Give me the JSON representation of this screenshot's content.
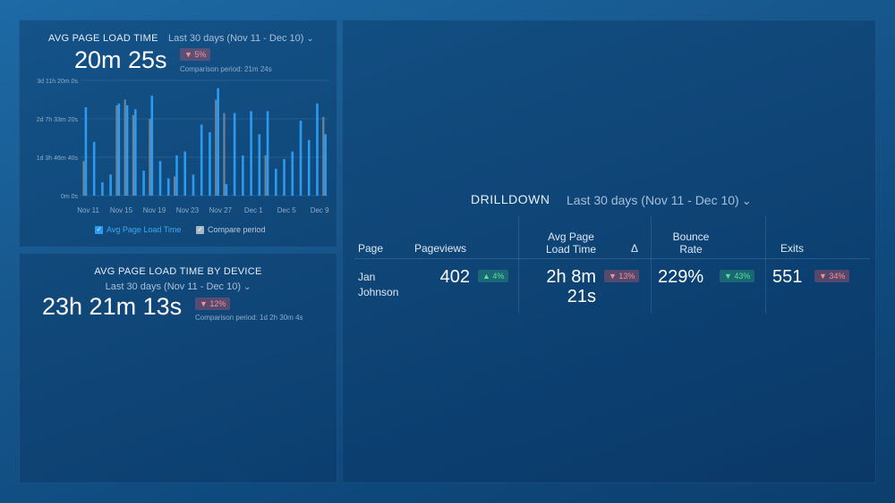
{
  "panel_load_time": {
    "title": "AVG PAGE LOAD TIME",
    "range": "Last 30 days (Nov 11 - Dec 10)",
    "value": "20m 25s",
    "badge": "▼ 5%",
    "comparison": "Comparison period: 21m 24s",
    "legend_primary": "Avg Page Load Time",
    "legend_compare": "Compare period"
  },
  "panel_device": {
    "title": "AVG PAGE LOAD TIME BY DEVICE",
    "range": "Last 30 days (Nov 11 - Dec 10)",
    "value": "23h 21m 13s",
    "badge": "▼ 12%",
    "comparison": "Comparison period: 1d 2h 30m 4s"
  },
  "drilldown": {
    "title": "DRILLDOWN",
    "range": "Last 30 days (Nov 11 - Dec 10)",
    "headers": {
      "page": "Page",
      "pageviews": "Pageviews",
      "load_time_1": "Avg Page",
      "load_time_2": "Load Time",
      "delta": "Δ",
      "bounce_1": "Bounce",
      "bounce_2": "Rate",
      "exits": "Exits"
    },
    "row": {
      "page_1": "Jan",
      "page_2": "Johnson",
      "pageviews": "402",
      "pageviews_badge": "▲ 4%",
      "load_time_1": "2h 8m",
      "load_time_2": "21s",
      "load_time_badge": "▼ 13%",
      "bounce": "229%",
      "bounce_badge": "▼ 43%",
      "exits": "551",
      "exits_badge": "▼ 34%"
    }
  },
  "colors": {
    "primary_series": "#2a9bf0",
    "compare_series": "#6f8597",
    "badge_down": "#ff8d8f",
    "badge_up": "#56e29a"
  },
  "chart_data": {
    "type": "bar",
    "title": "AVG PAGE LOAD TIME",
    "y_ticks": [
      "0m 0s",
      "1d 3h 46m 40s",
      "2d 7h 33m 20s",
      "3d 11h 20m 0s"
    ],
    "y_tick_values_seconds": [
      0,
      100000,
      200000,
      300000
    ],
    "ylim_seconds": [
      0,
      300000
    ],
    "x_tick_labels": [
      "Nov 11",
      "Nov 15",
      "Nov 19",
      "Nov 23",
      "Nov 27",
      "Dec 1",
      "Dec 5",
      "Dec 9"
    ],
    "x_tick_day_index": [
      0,
      4,
      8,
      12,
      16,
      20,
      24,
      28
    ],
    "days": 30,
    "series": [
      {
        "name": "Avg Page Load Time",
        "values": [
          230000,
          140000,
          35000,
          55000,
          240000,
          235000,
          225000,
          65000,
          260000,
          90000,
          45000,
          105000,
          115000,
          55000,
          185000,
          165000,
          280000,
          30000,
          215000,
          105000,
          220000,
          160000,
          220000,
          70000,
          95000,
          115000,
          195000,
          145000,
          240000,
          160000
        ]
      },
      {
        "name": "Compare period",
        "values": [
          90000,
          0,
          0,
          0,
          235000,
          250000,
          210000,
          0,
          200000,
          0,
          0,
          50000,
          0,
          0,
          0,
          0,
          250000,
          215000,
          0,
          0,
          0,
          0,
          105000,
          0,
          0,
          0,
          0,
          0,
          0,
          205000
        ]
      }
    ],
    "legend": "bottom-center",
    "grid": true
  }
}
